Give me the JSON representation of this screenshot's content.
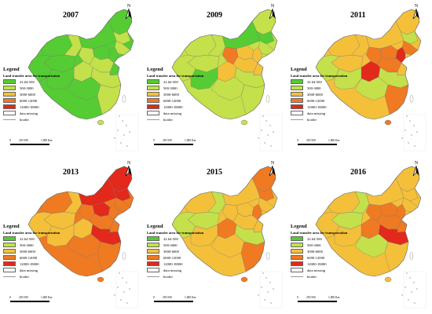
{
  "north_label": "N",
  "legend": {
    "title": "Legend",
    "subtitle": "Land transfer area for transportation",
    "classes": [
      {
        "label": "22.64-500",
        "color": "#55cc33"
      },
      {
        "label": "500-3000",
        "color": "#c4e04a"
      },
      {
        "label": "3000-6000",
        "color": "#f4c03a"
      },
      {
        "label": "6000-12000",
        "color": "#ef7a22"
      },
      {
        "label": "12000-18000",
        "color": "#e3281c"
      }
    ],
    "missing_label": "data missing",
    "border_label": "border"
  },
  "scale_bar": {
    "labels": [
      "0",
      "250 500",
      "1,000 Km"
    ]
  },
  "panels": [
    {
      "year": "2007",
      "base_class": 0,
      "region_classes": [
        0,
        0,
        1,
        0,
        1,
        1,
        0,
        0,
        1,
        0,
        0,
        1,
        0,
        1,
        1,
        0,
        0,
        1
      ]
    },
    {
      "year": "2009",
      "base_class": 1,
      "region_classes": [
        1,
        1,
        0,
        0,
        1,
        1,
        2,
        2,
        3,
        1,
        1,
        2,
        2,
        2,
        1,
        0,
        1,
        1
      ]
    },
    {
      "year": "2011",
      "base_class": 2,
      "region_classes": [
        2,
        2,
        1,
        2,
        3,
        2,
        3,
        4,
        3,
        2,
        1,
        3,
        2,
        4,
        1,
        1,
        1,
        3
      ]
    },
    {
      "year": "2013",
      "base_class": 3,
      "region_classes": [
        3,
        4,
        4,
        4,
        3,
        2,
        4,
        3,
        3,
        2,
        2,
        3,
        3,
        2,
        4,
        2,
        3,
        3
      ]
    },
    {
      "year": "2015",
      "base_class": 2,
      "region_classes": [
        2,
        3,
        3,
        2,
        2,
        1,
        2,
        3,
        2,
        1,
        1,
        2,
        2,
        3,
        1,
        2,
        2,
        3
      ]
    },
    {
      "year": "2016",
      "base_class": 2,
      "region_classes": [
        2,
        2,
        2,
        2,
        2,
        1,
        3,
        3,
        3,
        1,
        2,
        3,
        3,
        3,
        4,
        2,
        1,
        2
      ]
    }
  ]
}
